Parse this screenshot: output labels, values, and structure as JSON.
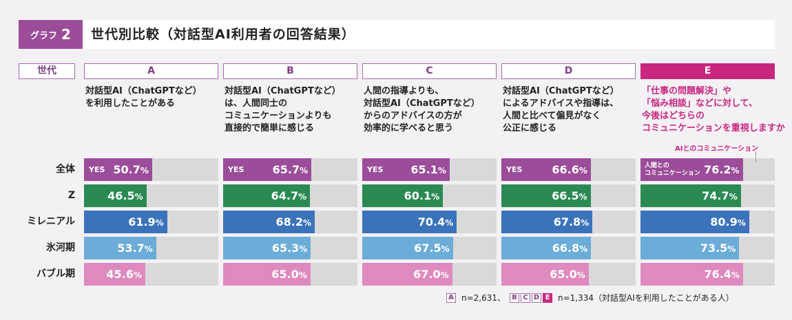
{
  "title": {
    "tag_label": "グラフ",
    "tag_number": "2",
    "text": "世代別比較（対話型AI利用者の回答結果）"
  },
  "header_generation": "世代",
  "colors": {
    "purple": "#9b4d9a",
    "green": "#2b8a54",
    "blue": "#3b73bb",
    "light_blue": "#6cacd8",
    "pink": "#de8abf",
    "magenta": "#c8277f",
    "track": "#d9d9d9"
  },
  "columns": [
    {
      "letter": "A",
      "question": [
        "対話型AI（ChatGPTなど）",
        "を利用したことがある"
      ]
    },
    {
      "letter": "B",
      "question": [
        "対話型AI（ChatGPTなど）",
        "は、人間同士の",
        "コミュニケーションよりも",
        "直接的で簡単に感じる"
      ]
    },
    {
      "letter": "C",
      "question": [
        "人間の指導よりも、",
        "対話型AI（ChatGPTなど）",
        "からのアドバイスの方が",
        "効率的に学べると思う"
      ]
    },
    {
      "letter": "D",
      "question": [
        "対話型AI（ChatGPTなど）",
        "によるアドバイスや指導は、",
        "人間と比べて偏見がなく",
        "公正に感じる"
      ]
    },
    {
      "letter": "E",
      "question": [
        "「仕事の問題解決」や",
        "「悩み相談」などに対して、",
        "今後はどちらの",
        "コミュニケーションを重視しますか"
      ]
    }
  ],
  "e_sublabel": "AIとのコミュニケーション",
  "bar_labels": {
    "yes": "YES",
    "e_line1": "人間との",
    "e_line2": "コミュニケーション"
  },
  "chart_data": {
    "type": "bar",
    "orientation": "horizontal",
    "unit": "%",
    "rows": [
      "全体",
      "Z",
      "ミレニアル",
      "氷河期",
      "バブル期"
    ],
    "columns": [
      "A",
      "B",
      "C",
      "D",
      "E"
    ],
    "xlim": [
      0,
      100
    ],
    "values": [
      [
        50.7,
        65.7,
        65.1,
        66.6,
        76.2
      ],
      [
        46.5,
        64.7,
        60.1,
        66.5,
        74.7
      ],
      [
        61.9,
        68.2,
        70.4,
        67.8,
        80.9
      ],
      [
        53.7,
        65.3,
        67.5,
        66.8,
        73.5
      ],
      [
        45.6,
        65.0,
        67.0,
        65.0,
        76.4
      ]
    ],
    "value_text": [
      [
        "50.7",
        "65.7",
        "65.1",
        "66.6",
        "76.2"
      ],
      [
        "46.5",
        "64.7",
        "60.1",
        "66.5",
        "74.7"
      ],
      [
        "61.9",
        "68.2",
        "70.4",
        "67.8",
        "80.9"
      ],
      [
        "53.7",
        "65.3",
        "67.5",
        "66.8",
        "73.5"
      ],
      [
        "45.6",
        "65.0",
        "67.0",
        "65.0",
        "76.4"
      ]
    ],
    "row_colors": [
      "#9b4d9a",
      "#2b8a54",
      "#3b73bb",
      "#6cacd8",
      "#de8abf"
    ]
  },
  "footnote": {
    "a_box": "A",
    "a_text": "n=2,631、",
    "boxes": [
      "B",
      "C",
      "D",
      "E"
    ],
    "bcde_text": "n=1,334（対話型AIを利用したことがある人）"
  }
}
